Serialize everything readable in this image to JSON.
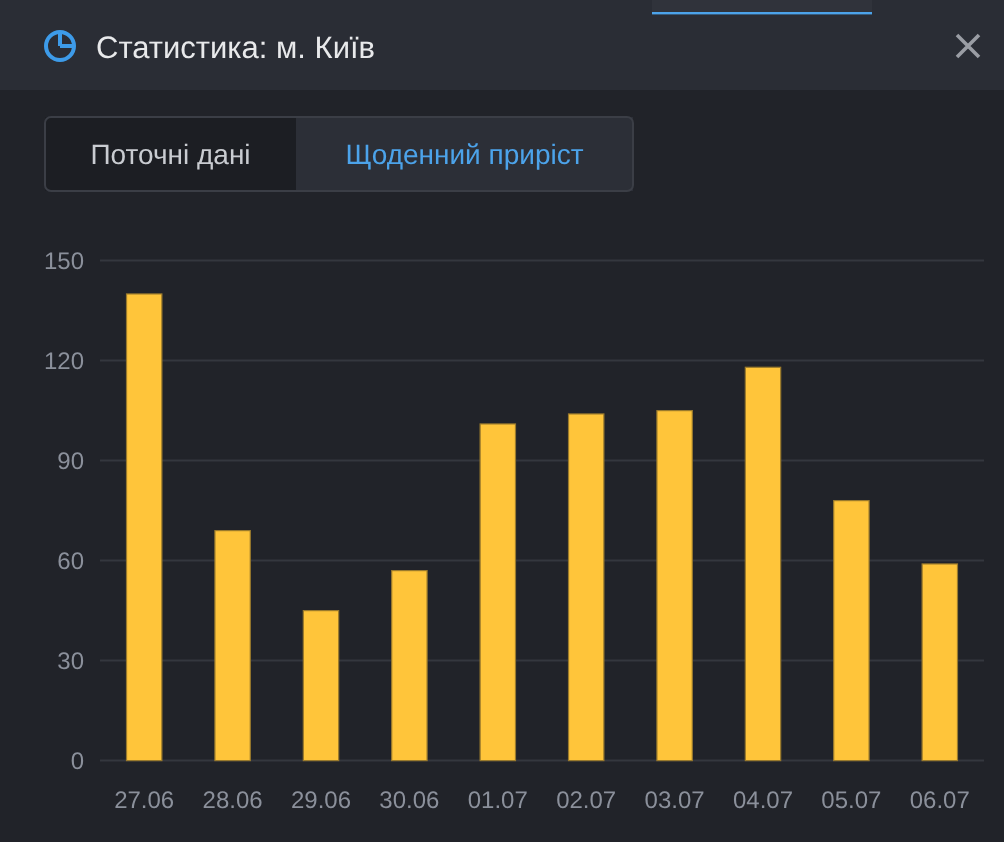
{
  "chart_data": {
    "type": "bar",
    "title": "Статистика: м. Київ",
    "annotations": [
      "Поточні дані",
      "Щоденний приріст"
    ],
    "categories": [
      "27.06",
      "28.06",
      "29.06",
      "30.06",
      "01.07",
      "02.07",
      "03.07",
      "04.07",
      "05.07",
      "06.07"
    ],
    "values": [
      140,
      69,
      45,
      57,
      101,
      104,
      105,
      118,
      78,
      59
    ],
    "color": "#ffc53a",
    "ylim": [
      0,
      150
    ],
    "yticks": [
      0,
      30,
      60,
      90,
      120,
      150
    ],
    "grid": "y"
  }
}
